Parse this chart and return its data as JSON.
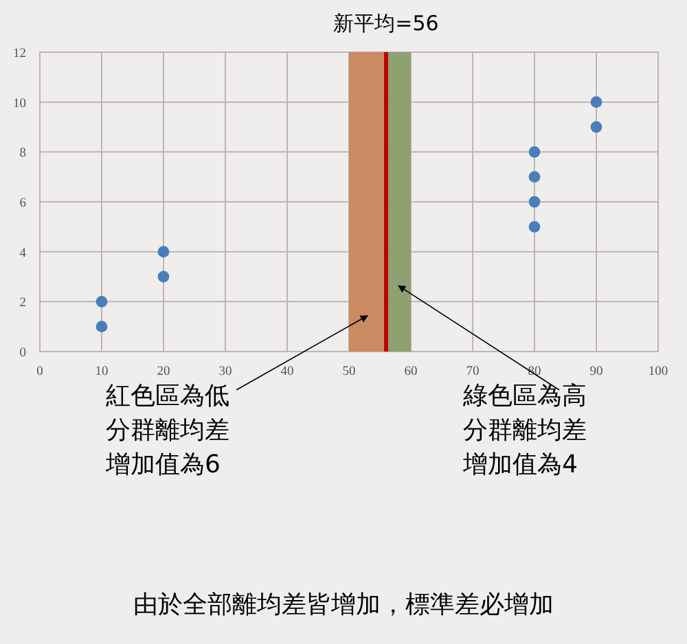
{
  "chart_data": {
    "type": "scatter",
    "x": [
      10,
      10,
      20,
      20,
      80,
      80,
      80,
      80,
      90,
      90
    ],
    "values": [
      1,
      2,
      3,
      4,
      5,
      6,
      7,
      8,
      9,
      10
    ],
    "color": "#4a7ebb",
    "marker": "circle",
    "grid": true,
    "xlim": [
      0,
      100
    ],
    "xticks": [
      0,
      10,
      20,
      30,
      40,
      50,
      60,
      70,
      80,
      90,
      100
    ],
    "ylim": [
      0,
      12
    ],
    "yticks": [
      0,
      2,
      4,
      6,
      8,
      10,
      12
    ],
    "bands": [
      {
        "axis": "x",
        "from": 50,
        "to": 56,
        "color": "#c8855c"
      },
      {
        "axis": "x",
        "from": 56,
        "to": 60,
        "color": "#8a9c6a"
      }
    ],
    "ref_lines": [
      {
        "axis": "x",
        "value": 56,
        "label": "新平均=56",
        "color": "#c00000"
      }
    ],
    "annotations": [
      "紅色區為低分群離均差增加值為6",
      "綠色區為高分群離均差增加值為4",
      "由於全部離均差皆增加，標準差必增加"
    ]
  }
}
